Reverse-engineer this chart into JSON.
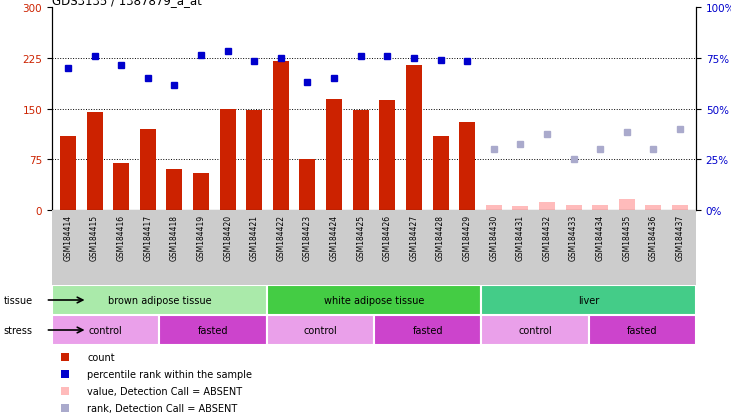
{
  "title": "GDS3135 / 1387879_a_at",
  "samples": [
    "GSM184414",
    "GSM184415",
    "GSM184416",
    "GSM184417",
    "GSM184418",
    "GSM184419",
    "GSM184420",
    "GSM184421",
    "GSM184422",
    "GSM184423",
    "GSM184424",
    "GSM184425",
    "GSM184426",
    "GSM184427",
    "GSM184428",
    "GSM184429",
    "GSM184430",
    "GSM184431",
    "GSM184432",
    "GSM184433",
    "GSM184434",
    "GSM184435",
    "GSM184436",
    "GSM184437"
  ],
  "count_values": [
    110,
    145,
    70,
    120,
    60,
    55,
    150,
    148,
    220,
    75,
    165,
    148,
    163,
    215,
    110,
    130,
    null,
    null,
    null,
    null,
    null,
    null,
    null,
    null
  ],
  "count_absent": [
    null,
    null,
    null,
    null,
    null,
    null,
    null,
    null,
    null,
    null,
    null,
    null,
    null,
    null,
    null,
    null,
    7,
    6,
    12,
    7,
    8,
    16,
    7,
    8
  ],
  "rank_values": [
    210,
    228,
    215,
    195,
    185,
    230,
    235,
    220,
    225,
    190,
    195,
    228,
    228,
    225,
    222,
    220,
    null,
    null,
    null,
    null,
    null,
    null,
    null,
    null
  ],
  "rank_absent": [
    null,
    null,
    null,
    null,
    null,
    null,
    null,
    null,
    null,
    null,
    null,
    null,
    null,
    null,
    null,
    null,
    90,
    98,
    112,
    75,
    90,
    115,
    90,
    120
  ],
  "tissue_groups": [
    {
      "label": "brown adipose tissue",
      "start": 0,
      "end": 7,
      "color": "#AAEAAA"
    },
    {
      "label": "white adipose tissue",
      "start": 8,
      "end": 15,
      "color": "#44CC44"
    },
    {
      "label": "liver",
      "start": 16,
      "end": 23,
      "color": "#44CC88"
    }
  ],
  "stress_groups": [
    {
      "label": "control",
      "start": 0,
      "end": 3,
      "color": "#EAA0EA"
    },
    {
      "label": "fasted",
      "start": 4,
      "end": 7,
      "color": "#CC44CC"
    },
    {
      "label": "control",
      "start": 8,
      "end": 11,
      "color": "#EAA0EA"
    },
    {
      "label": "fasted",
      "start": 12,
      "end": 15,
      "color": "#CC44CC"
    },
    {
      "label": "control",
      "start": 16,
      "end": 19,
      "color": "#EAA0EA"
    },
    {
      "label": "fasted",
      "start": 20,
      "end": 23,
      "color": "#CC44CC"
    }
  ],
  "ylim_left": [
    0,
    300
  ],
  "ylim_right": [
    0,
    100
  ],
  "yticks_left": [
    0,
    75,
    150,
    225,
    300
  ],
  "yticks_right": [
    0,
    25,
    50,
    75,
    100
  ],
  "bar_color": "#CC2200",
  "rank_color": "#0000CC",
  "absent_bar_color": "#FFBBBB",
  "absent_rank_color": "#AAAACC",
  "grid_color": "#000000",
  "bg_color": "#ffffff",
  "legend": [
    {
      "label": "count",
      "color": "#CC2200"
    },
    {
      "label": "percentile rank within the sample",
      "color": "#0000CC"
    },
    {
      "label": "value, Detection Call = ABSENT",
      "color": "#FFBBBB"
    },
    {
      "label": "rank, Detection Call = ABSENT",
      "color": "#AAAACC"
    }
  ]
}
